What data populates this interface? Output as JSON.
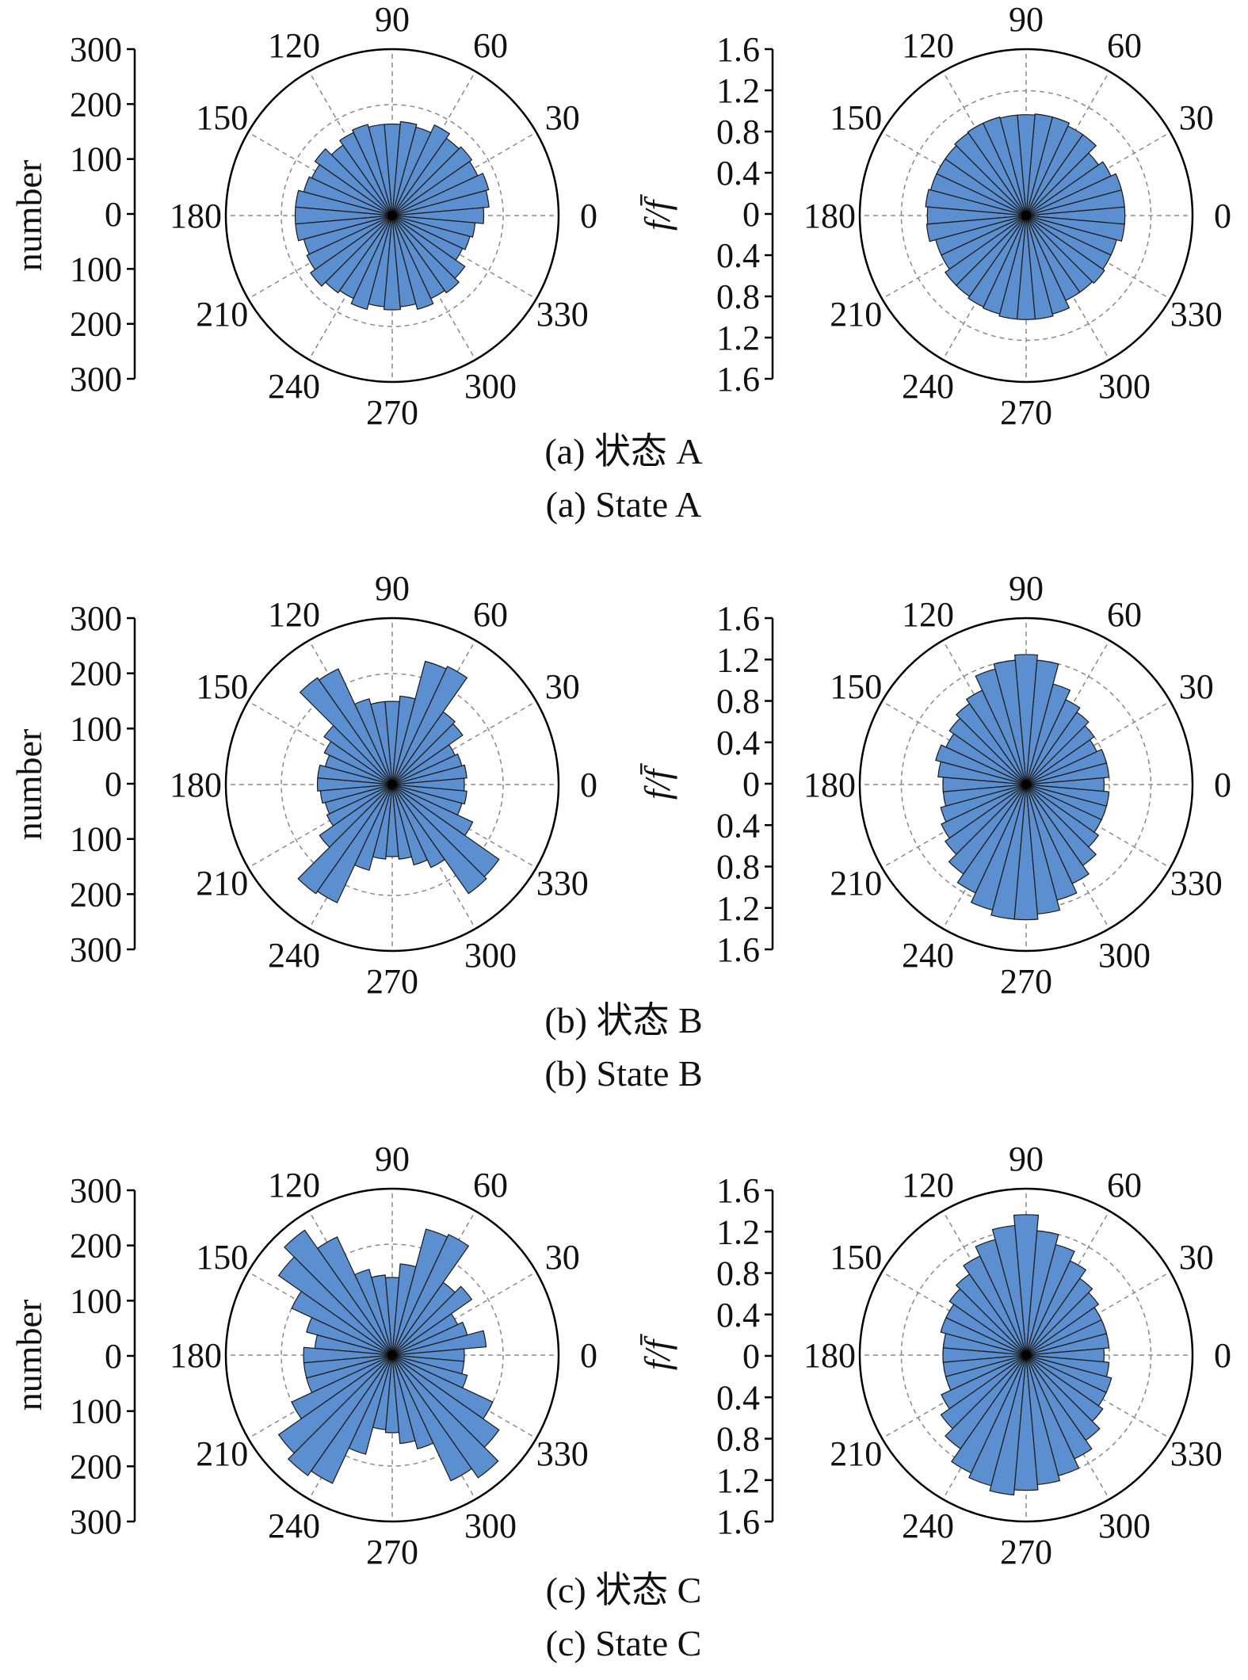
{
  "chart_data": [
    {
      "type": "polar-bar",
      "panel": "a-left",
      "ylabel": "number",
      "radial_ticks": [
        "300",
        "200",
        "100",
        "0",
        "100",
        "200",
        "300"
      ],
      "rmax": 300,
      "rings": [
        100,
        200
      ],
      "angle_labels": [
        "0",
        "30",
        "60",
        "90",
        "120",
        "150",
        "180",
        "210",
        "240",
        "270",
        "300",
        "330"
      ],
      "bin_width_deg": 10,
      "angles_deg": [
        0,
        10,
        20,
        30,
        40,
        50,
        60,
        70,
        80,
        90,
        100,
        110,
        120,
        130,
        140,
        150,
        160,
        170,
        180,
        190,
        200,
        210,
        220,
        230,
        240,
        250,
        260,
        270,
        280,
        290,
        300,
        310,
        320,
        330,
        340,
        350
      ],
      "values": [
        165,
        175,
        180,
        170,
        175,
        170,
        180,
        165,
        170,
        165,
        165,
        170,
        165,
        155,
        170,
        160,
        165,
        175,
        175,
        175,
        165,
        170,
        180,
        170,
        165,
        175,
        165,
        170,
        165,
        175,
        165,
        170,
        160,
        140,
        145,
        150
      ]
    },
    {
      "type": "polar-bar",
      "panel": "a-right",
      "ylabel": "f/f̄",
      "radial_ticks": [
        "1.6",
        "1.2",
        "0.8",
        "0.4",
        "0",
        "0.4",
        "0.8",
        "1.2",
        "1.6"
      ],
      "rmax": 1.6,
      "rings": [
        0.8,
        1.2
      ],
      "angle_labels": [
        "0",
        "30",
        "60",
        "90",
        "120",
        "150",
        "180",
        "210",
        "240",
        "270",
        "300",
        "330"
      ],
      "bin_width_deg": 10,
      "angles_deg": [
        0,
        10,
        20,
        30,
        40,
        50,
        60,
        70,
        80,
        90,
        100,
        110,
        120,
        130,
        140,
        150,
        160,
        170,
        180,
        190,
        200,
        210,
        220,
        230,
        240,
        250,
        260,
        270,
        280,
        290,
        300,
        310,
        320,
        330,
        340,
        350
      ],
      "values": [
        0.95,
        0.95,
        0.95,
        0.9,
        0.85,
        0.95,
        0.95,
        0.98,
        0.98,
        0.97,
        0.97,
        0.98,
        0.98,
        0.97,
        0.95,
        0.95,
        0.95,
        0.97,
        0.95,
        0.96,
        0.9,
        0.9,
        0.95,
        0.95,
        0.97,
        0.98,
        1.0,
        1.0,
        1.0,
        0.98,
        0.9,
        0.9,
        0.92,
        0.9,
        0.9,
        0.95
      ]
    },
    {
      "type": "polar-bar",
      "panel": "b-left",
      "ylabel": "number",
      "radial_ticks": [
        "300",
        "200",
        "100",
        "0",
        "100",
        "200",
        "300"
      ],
      "rmax": 300,
      "rings": [
        100,
        200
      ],
      "angle_labels": [
        "0",
        "30",
        "60",
        "90",
        "120",
        "150",
        "180",
        "210",
        "240",
        "270",
        "300",
        "330"
      ],
      "bin_width_deg": 10,
      "angles_deg": [
        0,
        10,
        20,
        30,
        40,
        50,
        60,
        70,
        80,
        90,
        100,
        110,
        120,
        130,
        140,
        150,
        160,
        170,
        180,
        190,
        200,
        210,
        220,
        230,
        240,
        250,
        260,
        270,
        280,
        290,
        300,
        310,
        320,
        330,
        340,
        350
      ],
      "values": [
        130,
        135,
        130,
        125,
        155,
        160,
        235,
        230,
        160,
        150,
        150,
        160,
        230,
        235,
        150,
        135,
        125,
        135,
        135,
        130,
        125,
        130,
        160,
        240,
        235,
        160,
        135,
        130,
        135,
        150,
        165,
        240,
        235,
        160,
        130,
        135
      ]
    },
    {
      "type": "polar-bar",
      "panel": "b-right",
      "ylabel": "f/f̄",
      "radial_ticks": [
        "1.6",
        "1.2",
        "0.8",
        "0.4",
        "0",
        "0.4",
        "0.8",
        "1.2",
        "1.6"
      ],
      "rmax": 1.6,
      "rings": [
        0.8,
        1.2
      ],
      "angle_labels": [
        "0",
        "30",
        "60",
        "90",
        "120",
        "150",
        "180",
        "210",
        "240",
        "270",
        "300",
        "330"
      ],
      "bin_width_deg": 10,
      "angles_deg": [
        0,
        10,
        20,
        30,
        40,
        50,
        60,
        70,
        80,
        90,
        100,
        110,
        120,
        130,
        140,
        150,
        160,
        170,
        180,
        190,
        200,
        210,
        220,
        230,
        240,
        250,
        260,
        270,
        280,
        290,
        300,
        310,
        320,
        330,
        340,
        350
      ],
      "values": [
        0.75,
        0.8,
        0.8,
        0.75,
        0.8,
        0.85,
        0.9,
        1.0,
        1.2,
        1.25,
        1.2,
        1.15,
        1.0,
        0.95,
        0.9,
        0.85,
        0.9,
        0.85,
        0.8,
        0.8,
        0.85,
        0.9,
        0.95,
        1.05,
        1.15,
        1.25,
        1.3,
        1.3,
        1.25,
        1.15,
        1.05,
        0.95,
        0.85,
        0.8,
        0.8,
        0.8
      ]
    },
    {
      "type": "polar-bar",
      "panel": "c-left",
      "ylabel": "number",
      "radial_ticks": [
        "300",
        "200",
        "100",
        "0",
        "100",
        "200",
        "300"
      ],
      "rmax": 300,
      "rings": [
        100,
        200
      ],
      "angle_labels": [
        "0",
        "30",
        "60",
        "90",
        "120",
        "150",
        "180",
        "210",
        "240",
        "270",
        "300",
        "330"
      ],
      "bin_width_deg": 10,
      "angles_deg": [
        0,
        10,
        20,
        30,
        40,
        50,
        60,
        70,
        80,
        90,
        100,
        110,
        120,
        130,
        140,
        150,
        160,
        170,
        180,
        190,
        200,
        210,
        220,
        230,
        240,
        250,
        260,
        270,
        280,
        290,
        300,
        310,
        320,
        330,
        340,
        350
      ],
      "values": [
        130,
        170,
        140,
        130,
        175,
        160,
        240,
        235,
        165,
        140,
        145,
        160,
        235,
        275,
        250,
        200,
        160,
        140,
        160,
        160,
        160,
        200,
        250,
        265,
        255,
        185,
        135,
        140,
        160,
        175,
        250,
        270,
        235,
        200,
        140,
        130
      ]
    },
    {
      "type": "polar-bar",
      "panel": "c-right",
      "ylabel": "f/f̄",
      "radial_ticks": [
        "1.6",
        "1.2",
        "0.8",
        "0.4",
        "0",
        "0.4",
        "0.8",
        "1.2",
        "1.6"
      ],
      "rmax": 1.6,
      "rings": [
        0.8,
        1.2
      ],
      "angle_labels": [
        "0",
        "30",
        "60",
        "90",
        "120",
        "150",
        "180",
        "210",
        "240",
        "270",
        "300",
        "330"
      ],
      "bin_width_deg": 10,
      "angles_deg": [
        0,
        10,
        20,
        30,
        40,
        50,
        60,
        70,
        80,
        90,
        100,
        110,
        120,
        130,
        140,
        150,
        160,
        170,
        180,
        190,
        200,
        210,
        220,
        230,
        240,
        250,
        260,
        270,
        280,
        290,
        300,
        310,
        320,
        330,
        340,
        350
      ],
      "values": [
        0.75,
        0.8,
        0.8,
        0.8,
        0.85,
        0.9,
        1.0,
        1.1,
        1.2,
        1.35,
        1.25,
        1.15,
        1.05,
        0.95,
        0.9,
        0.85,
        0.85,
        0.8,
        0.8,
        0.8,
        0.8,
        0.9,
        1.0,
        1.1,
        1.25,
        1.3,
        1.35,
        1.3,
        1.25,
        1.2,
        1.1,
        1.0,
        0.9,
        0.85,
        0.85,
        0.8
      ]
    }
  ],
  "captions": [
    {
      "cn": "(a) 状态 A",
      "en": "(a) State A"
    },
    {
      "cn": "(b) 状态 B",
      "en": "(b) State B"
    },
    {
      "cn": "(c) 状态 C",
      "en": "(c) State C"
    }
  ],
  "colors": {
    "bar_fill": "#5b8fcf",
    "bar_edge": "#1a1a1a",
    "grid": "#8a8a8a",
    "axis": "#000000"
  }
}
